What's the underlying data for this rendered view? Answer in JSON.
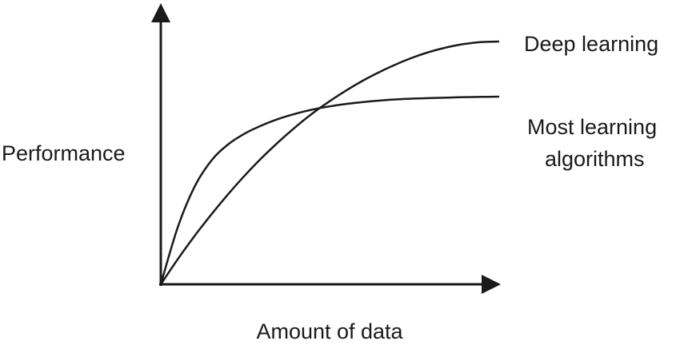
{
  "chart_data": {
    "type": "line",
    "xlabel": "Amount of data",
    "ylabel": "Performance",
    "x_ticks": "none",
    "y_ticks": "none",
    "grid": false,
    "legend": "direct labels at right end of curves",
    "line_color": "#1a1a1a",
    "series": [
      {
        "label_lines": [
          "Deep learning"
        ],
        "shape": "steadily increasing, concave",
        "x": [
          0,
          0.05,
          0.1,
          0.15,
          0.2,
          0.25,
          0.3,
          0.35,
          0.4,
          0.45,
          0.5,
          0.55,
          0.6,
          0.65,
          0.7,
          0.75,
          0.8,
          0.85,
          0.9,
          0.95,
          1.0
        ],
        "y": [
          0,
          0.103,
          0.199,
          0.288,
          0.372,
          0.45,
          0.522,
          0.588,
          0.649,
          0.705,
          0.754,
          0.799,
          0.84,
          0.876,
          0.908,
          0.936,
          0.959,
          0.977,
          0.99,
          0.998,
          1.0
        ]
      },
      {
        "label_lines": [
          "Most learning",
          "algorithms"
        ],
        "shape": "rises quickly then plateaus",
        "x": [
          0,
          0.05,
          0.1,
          0.15,
          0.2,
          0.25,
          0.3,
          0.35,
          0.4,
          0.45,
          0.5,
          0.55,
          0.6,
          0.65,
          0.7,
          0.75,
          0.8,
          0.85,
          0.9,
          0.95,
          1.0
        ],
        "y": [
          0,
          0.234,
          0.402,
          0.51,
          0.577,
          0.622,
          0.655,
          0.682,
          0.703,
          0.72,
          0.733,
          0.743,
          0.751,
          0.757,
          0.762,
          0.765,
          0.767,
          0.769,
          0.771,
          0.772,
          0.773
        ]
      }
    ]
  }
}
